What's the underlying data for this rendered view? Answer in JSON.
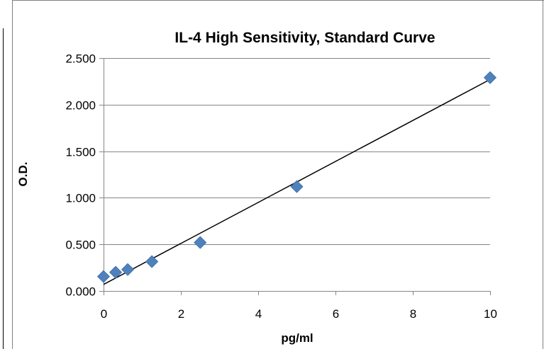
{
  "chart_data": {
    "type": "scatter",
    "title": "IL-4 High Sensitivity, Standard Curve",
    "xlabel": "pg/ml",
    "ylabel": "O.D.",
    "xlim": [
      0,
      10
    ],
    "ylim": [
      0,
      2.5
    ],
    "x_ticks": [
      "0",
      "2",
      "4",
      "6",
      "8",
      "10"
    ],
    "y_ticks": [
      "0.000",
      "0.500",
      "1.000",
      "1.500",
      "2.000",
      "2.500"
    ],
    "grid": "horizontal",
    "legend": "none",
    "series": [
      {
        "points": [
          {
            "x": 0,
            "y": 0.155
          },
          {
            "x": 0.3125,
            "y": 0.2
          },
          {
            "x": 0.625,
            "y": 0.23
          },
          {
            "x": 1.25,
            "y": 0.315
          },
          {
            "x": 2.5,
            "y": 0.52
          },
          {
            "x": 5,
            "y": 1.12
          },
          {
            "x": 10,
            "y": 2.29
          }
        ],
        "color": "#4f81bd",
        "marker": "diamond"
      }
    ],
    "trendline": {
      "type": "linear",
      "from": {
        "x": 0,
        "y": 0.07
      },
      "to": {
        "x": 10,
        "y": 2.27
      },
      "color": "#000000"
    }
  }
}
